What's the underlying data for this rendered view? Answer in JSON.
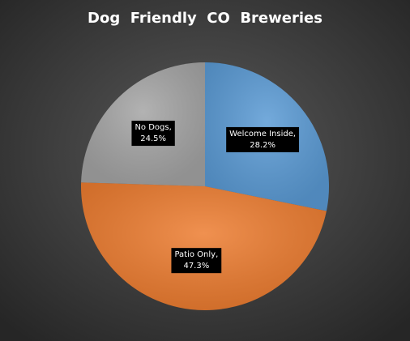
{
  "chart_data": {
    "type": "pie",
    "title": "Dog  Friendly  CO  Breweries",
    "values": [
      28.2,
      47.3,
      24.5
    ],
    "value_labels": [
      "Welcome Inside, 28.2%",
      "Patio Only, 47.3%",
      "No Dogs, 24.5%"
    ],
    "colors": [
      "#5b9bd5",
      "#ed7d31",
      "#a5a5a5"
    ]
  }
}
